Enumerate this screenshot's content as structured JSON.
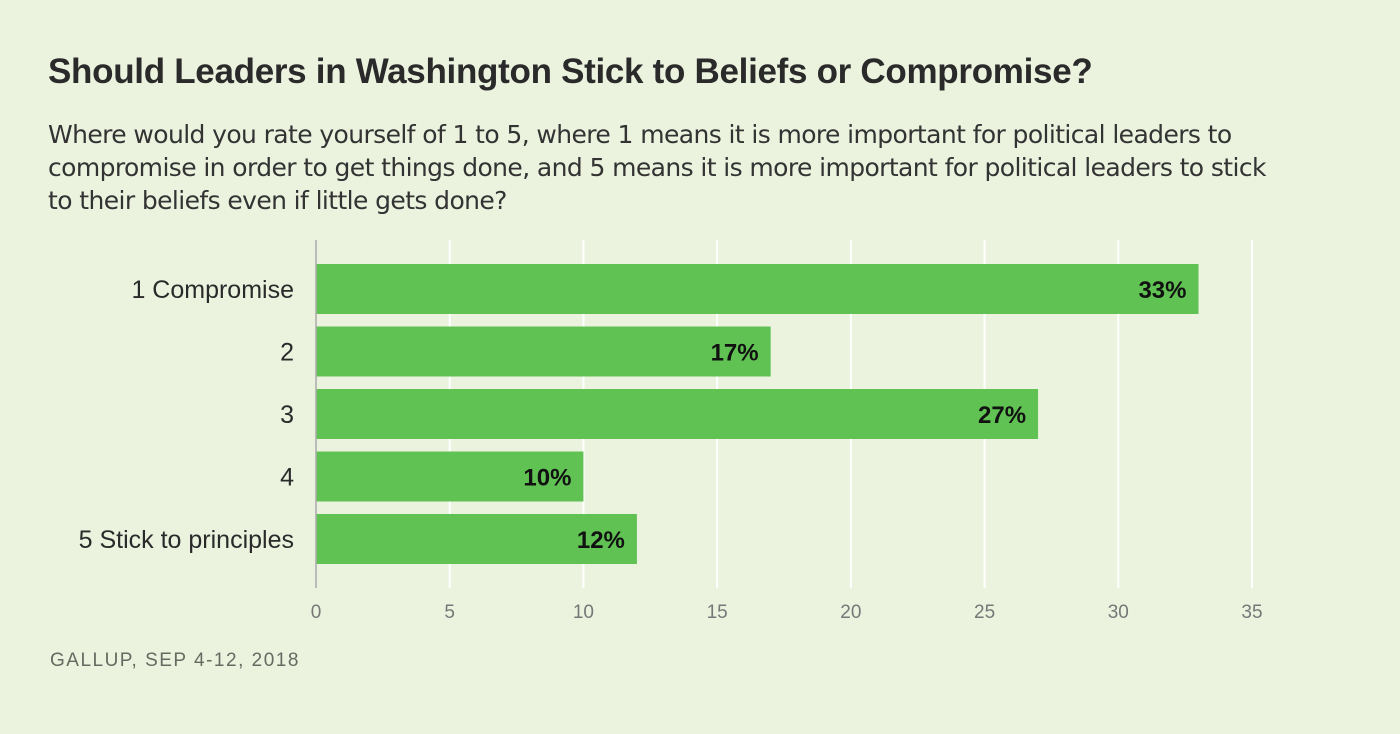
{
  "header": {
    "title": "Should Leaders in Washington Stick to Beliefs or Compromise?",
    "subtitle": "Where would you rate yourself of 1 to 5, where 1 means it is more important for political leaders to compromise in order to get things done, and 5 means it is more important for political leaders to stick to their beliefs even if little gets done?"
  },
  "footer": {
    "source": "GALLUP, SEP 4-12, 2018"
  },
  "colors": {
    "bar": "#61c254",
    "background": "#ebf3df",
    "gridline": "#ffffff",
    "axis": "#aaaaaa"
  },
  "chart_data": {
    "type": "bar",
    "orientation": "horizontal",
    "title": "Should Leaders in Washington Stick to Beliefs or Compromise?",
    "categories": [
      "1 Compromise",
      "2",
      "3",
      "4",
      "5 Stick to principles"
    ],
    "values": [
      33,
      17,
      27,
      10,
      12
    ],
    "value_labels": [
      "33%",
      "17%",
      "27%",
      "10%",
      "12%"
    ],
    "xlabel": "",
    "ylabel": "",
    "xlim": [
      0,
      35
    ],
    "xticks": [
      0,
      5,
      10,
      15,
      20,
      25,
      30,
      35
    ],
    "xtick_labels": [
      "0",
      "5",
      "10",
      "15",
      "20",
      "25",
      "30",
      "35"
    ],
    "grid": true,
    "legend": "none",
    "units": "percent"
  }
}
